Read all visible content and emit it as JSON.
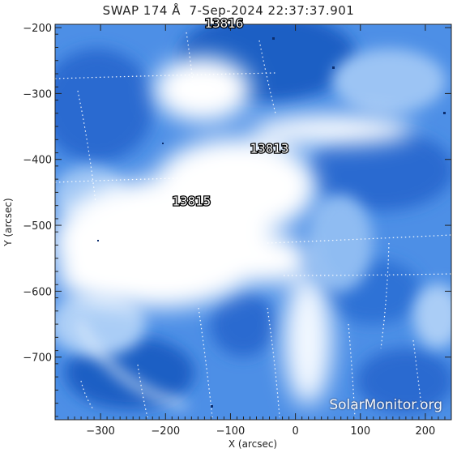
{
  "title": "SWAP 174 Å  7-Sep-2024 22:37:37.901",
  "watermark": "SolarMonitor.org",
  "colors": {
    "map_dark": "#1f5fc4",
    "map_mid": "#4d8fe6",
    "map_light": "#cfe3fb",
    "map_white": "#ffffff",
    "grid": "#ffffff",
    "axis": "#222222"
  },
  "chart_data": {
    "type": "heatmap",
    "title": "SWAP 174 Å  7-Sep-2024 22:37:37.901",
    "xlabel": "X (arcsec)",
    "ylabel": "Y (arcsec)",
    "xlim": [
      -370,
      240
    ],
    "ylim": [
      -795,
      -195
    ],
    "x_ticks": [
      -300,
      -200,
      -100,
      0,
      100,
      200
    ],
    "y_ticks": [
      -200,
      -300,
      -400,
      -500,
      -600,
      -700
    ],
    "grid": "heliographic, dotted",
    "regions": [
      {
        "label": "13816",
        "x": -110,
        "y": -200
      },
      {
        "label": "13813",
        "x": -40,
        "y": -390
      },
      {
        "label": "13815",
        "x": -160,
        "y": -470
      }
    ]
  }
}
